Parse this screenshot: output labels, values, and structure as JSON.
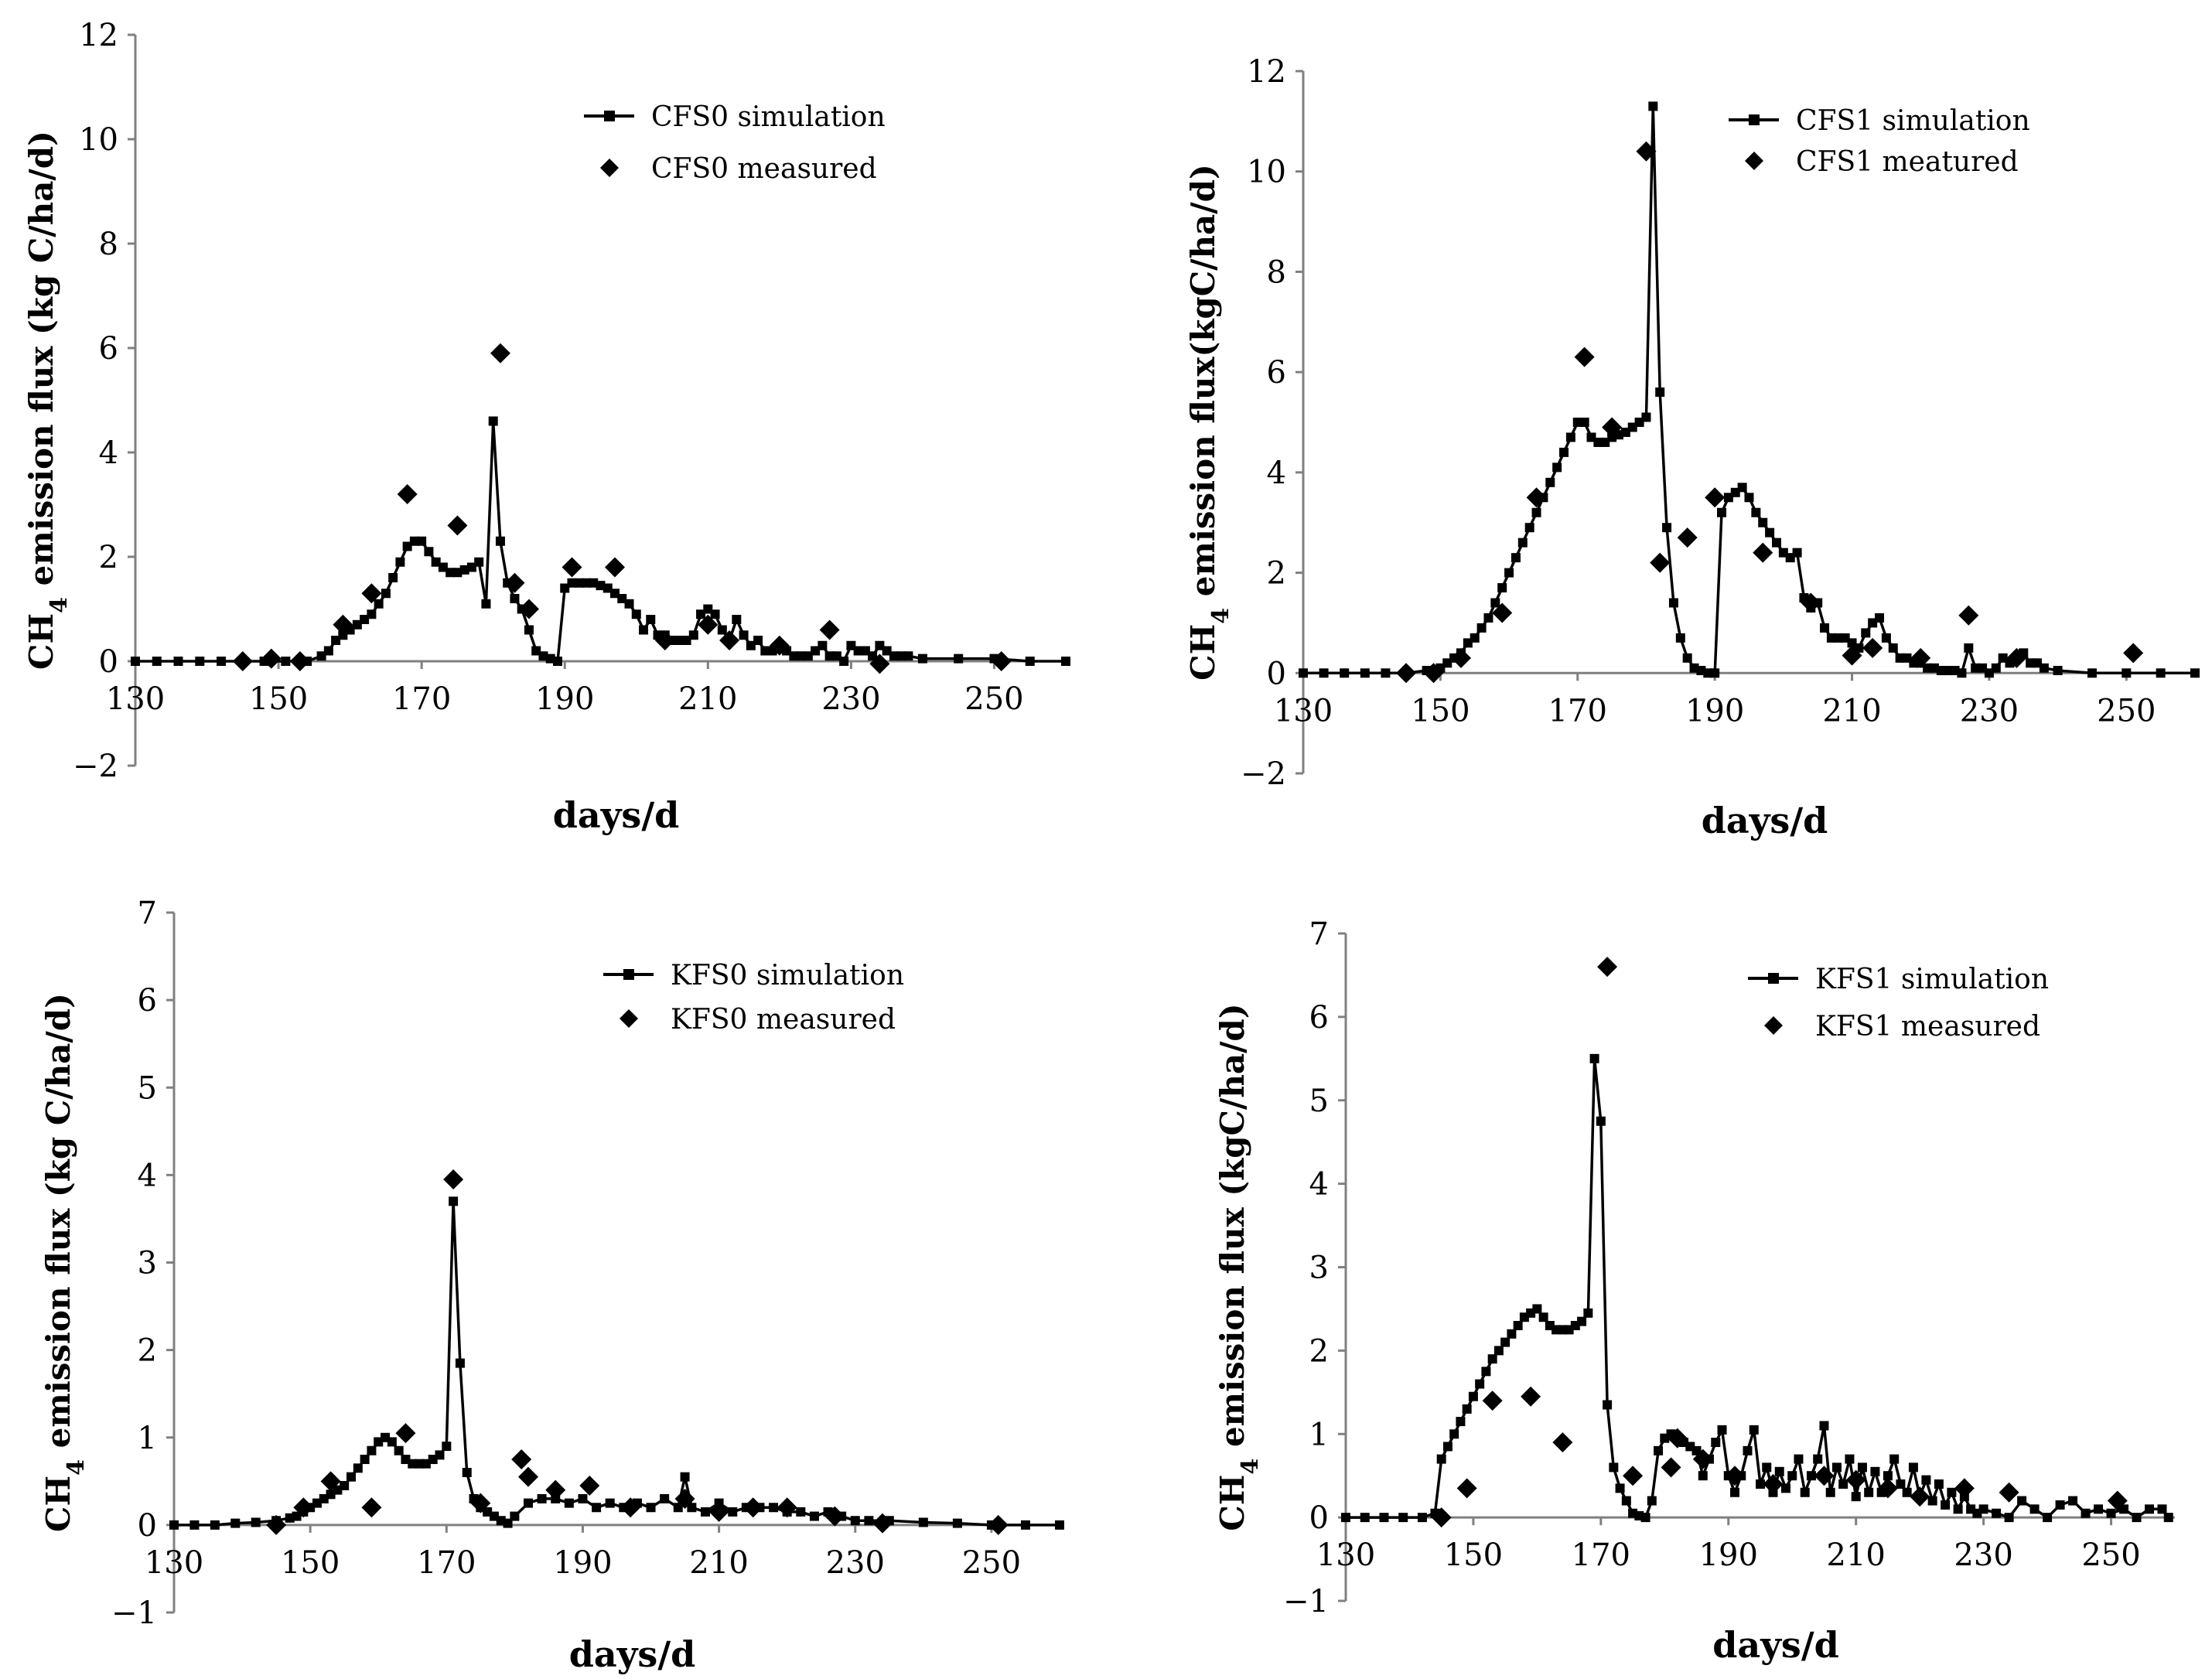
{
  "chart_data": [
    {
      "type": "line",
      "id": "cfs0",
      "xlabel": "days/d",
      "ylabel_prefix": "CH",
      "ylabel_sub": "4",
      "ylabel_suffix": " emission flux (kg C/ha/d)",
      "xlim": [
        130,
        260
      ],
      "ylim": [
        -2,
        12
      ],
      "xticks": [
        130,
        150,
        170,
        190,
        210,
        230,
        250
      ],
      "yticks": [
        -2,
        0,
        2,
        4,
        6,
        8,
        10,
        12
      ],
      "legend_position": "top-right",
      "series": [
        {
          "name": "CFS0 simulation",
          "style": "line-square",
          "x": [
            130,
            133,
            136,
            139,
            142,
            145,
            148,
            151,
            154,
            156,
            157,
            158,
            159,
            160,
            161,
            162,
            163,
            164,
            165,
            166,
            167,
            168,
            169,
            170,
            171,
            172,
            173,
            174,
            175,
            176,
            177,
            178,
            179,
            180,
            181,
            182,
            183,
            184,
            185,
            186,
            187,
            188,
            189,
            190,
            191,
            192,
            193,
            194,
            195,
            196,
            197,
            198,
            199,
            200,
            201,
            202,
            203,
            204,
            205,
            206,
            207,
            208,
            209,
            210,
            211,
            212,
            213,
            214,
            215,
            216,
            217,
            218,
            219,
            220,
            221,
            222,
            223,
            224,
            225,
            226,
            227,
            228,
            229,
            230,
            231,
            232,
            233,
            234,
            235,
            236,
            237,
            238,
            240,
            245,
            250,
            255,
            260
          ],
          "y": [
            0,
            0,
            0,
            0,
            0,
            0,
            0,
            0,
            0,
            0.1,
            0.2,
            0.4,
            0.5,
            0.6,
            0.7,
            0.8,
            0.9,
            1.1,
            1.3,
            1.6,
            1.9,
            2.2,
            2.3,
            2.3,
            2.1,
            1.9,
            1.8,
            1.7,
            1.7,
            1.75,
            1.8,
            1.9,
            1.1,
            4.6,
            2.3,
            1.5,
            1.2,
            1.0,
            0.6,
            0.2,
            0.1,
            0.05,
            0,
            1.4,
            1.5,
            1.5,
            1.5,
            1.5,
            1.45,
            1.4,
            1.3,
            1.2,
            1.1,
            0.9,
            0.6,
            0.8,
            0.5,
            0.5,
            0.4,
            0.4,
            0.4,
            0.5,
            0.9,
            1.0,
            0.9,
            0.6,
            0.4,
            0.8,
            0.5,
            0.3,
            0.4,
            0.2,
            0.2,
            0.3,
            0.2,
            0.1,
            0.1,
            0.1,
            0.2,
            0.3,
            0.1,
            0.1,
            0,
            0.3,
            0.2,
            0.2,
            0.1,
            0.3,
            0.2,
            0.1,
            0.1,
            0.1,
            0.05,
            0.05,
            0.05,
            0,
            0
          ]
        },
        {
          "name": "CFS0 measured",
          "style": "diamond",
          "x": [
            145,
            149,
            153,
            159,
            163,
            168,
            175,
            181,
            183,
            185,
            191,
            197,
            204,
            210,
            213,
            220,
            227,
            234,
            251
          ],
          "y": [
            0,
            0.05,
            0,
            0.7,
            1.3,
            3.2,
            2.6,
            5.9,
            1.5,
            1.0,
            1.8,
            1.8,
            0.4,
            0.7,
            0.4,
            0.3,
            0.6,
            -0.05,
            0
          ]
        }
      ]
    },
    {
      "type": "line",
      "id": "cfs1",
      "xlabel": "days/d",
      "ylabel_prefix": "CH",
      "ylabel_sub": "4",
      "ylabel_suffix": " emission flux(kgC/ha/d)",
      "xlim": [
        130,
        260
      ],
      "ylim": [
        -2,
        12
      ],
      "xticks": [
        130,
        150,
        170,
        190,
        210,
        230,
        250
      ],
      "yticks": [
        -2,
        0,
        2,
        4,
        6,
        8,
        10,
        12
      ],
      "legend_position": "top-right",
      "series": [
        {
          "name": "CFS1 simulation",
          "style": "line-square",
          "x": [
            130,
            133,
            136,
            139,
            142,
            145,
            148,
            150,
            151,
            152,
            153,
            154,
            155,
            156,
            157,
            158,
            159,
            160,
            161,
            162,
            163,
            164,
            165,
            166,
            167,
            168,
            169,
            170,
            171,
            172,
            173,
            174,
            175,
            176,
            177,
            178,
            179,
            180,
            181,
            182,
            183,
            184,
            185,
            186,
            187,
            188,
            189,
            190,
            191,
            192,
            193,
            194,
            195,
            196,
            197,
            198,
            199,
            200,
            201,
            202,
            203,
            204,
            205,
            206,
            207,
            208,
            209,
            210,
            211,
            212,
            213,
            214,
            215,
            216,
            217,
            218,
            219,
            220,
            221,
            222,
            223,
            224,
            225,
            226,
            227,
            228,
            229,
            230,
            231,
            232,
            233,
            234,
            235,
            236,
            237,
            238,
            240,
            245,
            250,
            255,
            260
          ],
          "y": [
            0,
            0,
            0,
            0,
            0,
            0,
            0.05,
            0.1,
            0.2,
            0.3,
            0.4,
            0.6,
            0.7,
            0.9,
            1.1,
            1.4,
            1.7,
            2.0,
            2.3,
            2.6,
            2.9,
            3.2,
            3.5,
            3.8,
            4.1,
            4.4,
            4.7,
            5.0,
            5.0,
            4.7,
            4.6,
            4.6,
            4.7,
            4.75,
            4.8,
            4.9,
            5.0,
            5.1,
            11.3,
            5.6,
            2.9,
            1.4,
            0.7,
            0.3,
            0.1,
            0.05,
            0,
            0,
            3.2,
            3.5,
            3.6,
            3.7,
            3.5,
            3.2,
            3.0,
            2.8,
            2.6,
            2.4,
            2.3,
            2.4,
            1.5,
            1.3,
            1.4,
            0.9,
            0.7,
            0.7,
            0.7,
            0.6,
            0.5,
            0.8,
            1.0,
            1.1,
            0.7,
            0.5,
            0.3,
            0.3,
            0.2,
            0.2,
            0.1,
            0.1,
            0.05,
            0.05,
            0.05,
            0,
            0.5,
            0.1,
            0.1,
            0,
            0.1,
            0.3,
            0.2,
            0.3,
            0.4,
            0.2,
            0.2,
            0.1,
            0.05,
            0,
            0,
            0,
            0
          ]
        },
        {
          "name": "CFS1 meatured",
          "style": "diamond",
          "x": [
            145,
            149,
            153,
            159,
            164,
            171,
            175,
            180,
            182,
            186,
            190,
            197,
            204,
            210,
            213,
            220,
            227,
            234,
            251
          ],
          "y": [
            0,
            0,
            0.3,
            1.2,
            3.5,
            6.3,
            4.9,
            10.4,
            2.2,
            2.7,
            3.5,
            2.4,
            1.4,
            0.35,
            0.5,
            0.3,
            1.15,
            0.3,
            0.4
          ]
        }
      ]
    },
    {
      "type": "line",
      "id": "kfs0",
      "xlabel": "days/d",
      "ylabel_prefix": "CH",
      "ylabel_sub": "4",
      "ylabel_suffix": " emission flux (kg C/ha/d)",
      "xlim": [
        130,
        260
      ],
      "ylim": [
        -1,
        7
      ],
      "xticks": [
        130,
        150,
        170,
        190,
        210,
        230,
        250
      ],
      "yticks": [
        -1,
        0,
        1,
        2,
        3,
        4,
        5,
        6,
        7
      ],
      "legend_position": "top-right",
      "series": [
        {
          "name": "KFS0 simulation",
          "style": "line-square",
          "x": [
            130,
            133,
            136,
            139,
            142,
            145,
            147,
            148,
            149,
            150,
            151,
            152,
            153,
            154,
            155,
            156,
            157,
            158,
            159,
            160,
            161,
            162,
            163,
            164,
            165,
            166,
            167,
            168,
            169,
            170,
            171,
            172,
            173,
            174,
            175,
            176,
            177,
            178,
            179,
            180,
            182,
            184,
            186,
            188,
            190,
            192,
            194,
            196,
            198,
            200,
            202,
            204,
            205,
            206,
            208,
            210,
            212,
            214,
            216,
            218,
            220,
            222,
            224,
            226,
            228,
            230,
            232,
            235,
            240,
            245,
            250,
            255,
            260
          ],
          "y": [
            0,
            0,
            0,
            0.02,
            0.03,
            0.05,
            0.08,
            0.1,
            0.15,
            0.2,
            0.25,
            0.3,
            0.35,
            0.4,
            0.45,
            0.55,
            0.65,
            0.75,
            0.85,
            0.95,
            1.0,
            0.95,
            0.85,
            0.75,
            0.7,
            0.7,
            0.7,
            0.75,
            0.8,
            0.9,
            3.7,
            1.85,
            0.6,
            0.3,
            0.2,
            0.15,
            0.1,
            0.05,
            0.02,
            0.1,
            0.25,
            0.3,
            0.3,
            0.25,
            0.3,
            0.2,
            0.25,
            0.2,
            0.25,
            0.2,
            0.3,
            0.2,
            0.55,
            0.2,
            0.15,
            0.25,
            0.15,
            0.2,
            0.2,
            0.2,
            0.15,
            0.15,
            0.1,
            0.15,
            0.1,
            0.05,
            0.05,
            0.05,
            0.03,
            0.02,
            0,
            0,
            0
          ]
        },
        {
          "name": "KFS0 measured",
          "style": "diamond",
          "x": [
            145,
            149,
            153,
            159,
            164,
            171,
            175,
            181,
            182,
            186,
            191,
            197,
            205,
            210,
            215,
            220,
            227,
            234,
            251
          ],
          "y": [
            0,
            0.2,
            0.5,
            0.2,
            1.05,
            3.95,
            0.25,
            0.75,
            0.55,
            0.4,
            0.45,
            0.2,
            0.3,
            0.15,
            0.2,
            0.2,
            0.1,
            0.02,
            0
          ]
        }
      ]
    },
    {
      "type": "line",
      "id": "kfs1",
      "xlabel": "days/d",
      "ylabel_prefix": "CH",
      "ylabel_sub": "4",
      "ylabel_suffix": " emission flux (kgC/ha/d)",
      "xlim": [
        130,
        260
      ],
      "ylim": [
        -1,
        7
      ],
      "xticks": [
        130,
        150,
        170,
        190,
        210,
        230,
        250
      ],
      "yticks": [
        -1,
        0,
        1,
        2,
        3,
        4,
        5,
        6,
        7
      ],
      "legend_position": "top-right",
      "series": [
        {
          "name": "KFS1 simulation",
          "style": "line-square",
          "x": [
            130,
            133,
            136,
            139,
            142,
            144,
            145,
            146,
            147,
            148,
            149,
            150,
            151,
            152,
            153,
            154,
            155,
            156,
            157,
            158,
            159,
            160,
            161,
            162,
            163,
            164,
            165,
            166,
            167,
            168,
            169,
            170,
            171,
            172,
            173,
            174,
            175,
            176,
            177,
            178,
            179,
            180,
            181,
            182,
            183,
            184,
            185,
            186,
            187,
            188,
            189,
            190,
            191,
            192,
            193,
            194,
            195,
            196,
            197,
            198,
            199,
            200,
            201,
            202,
            203,
            204,
            205,
            206,
            207,
            208,
            209,
            210,
            211,
            212,
            213,
            214,
            215,
            216,
            217,
            218,
            219,
            220,
            221,
            222,
            223,
            224,
            225,
            226,
            227,
            228,
            229,
            230,
            232,
            234,
            236,
            238,
            240,
            242,
            244,
            246,
            248,
            250,
            252,
            254,
            256,
            258,
            259
          ],
          "y": [
            0,
            0,
            0,
            0,
            0,
            0.05,
            0.7,
            0.85,
            1.0,
            1.15,
            1.3,
            1.45,
            1.6,
            1.75,
            1.9,
            2.0,
            2.1,
            2.2,
            2.3,
            2.4,
            2.45,
            2.5,
            2.4,
            2.3,
            2.25,
            2.25,
            2.25,
            2.3,
            2.35,
            2.45,
            5.5,
            4.75,
            1.35,
            0.6,
            0.35,
            0.2,
            0.05,
            0.02,
            0,
            0.2,
            0.8,
            0.95,
            1.0,
            0.95,
            0.9,
            0.85,
            0.8,
            0.5,
            0.7,
            0.9,
            1.05,
            0.5,
            0.3,
            0.5,
            0.8,
            1.05,
            0.4,
            0.6,
            0.3,
            0.55,
            0.35,
            0.5,
            0.7,
            0.3,
            0.5,
            0.7,
            1.1,
            0.3,
            0.6,
            0.4,
            0.7,
            0.25,
            0.6,
            0.3,
            0.55,
            0.3,
            0.5,
            0.7,
            0.4,
            0.3,
            0.6,
            0.25,
            0.45,
            0.2,
            0.4,
            0.15,
            0.3,
            0.1,
            0.25,
            0.1,
            0.05,
            0.1,
            0.05,
            0,
            0.2,
            0.1,
            0,
            0.15,
            0.2,
            0.05,
            0.1,
            0.05,
            0.1,
            0,
            0.1,
            0.1,
            0
          ]
        },
        {
          "name": "KFS1 measured",
          "style": "diamond",
          "x": [
            145,
            149,
            153,
            159,
            164,
            171,
            175,
            181,
            182,
            186,
            191,
            197,
            205,
            210,
            215,
            220,
            227,
            234,
            251
          ],
          "y": [
            0,
            0.35,
            1.4,
            1.45,
            0.9,
            6.6,
            0.5,
            0.6,
            0.95,
            0.7,
            0.5,
            0.4,
            0.5,
            0.45,
            0.35,
            0.25,
            0.35,
            0.3,
            0.2
          ]
        }
      ]
    }
  ]
}
